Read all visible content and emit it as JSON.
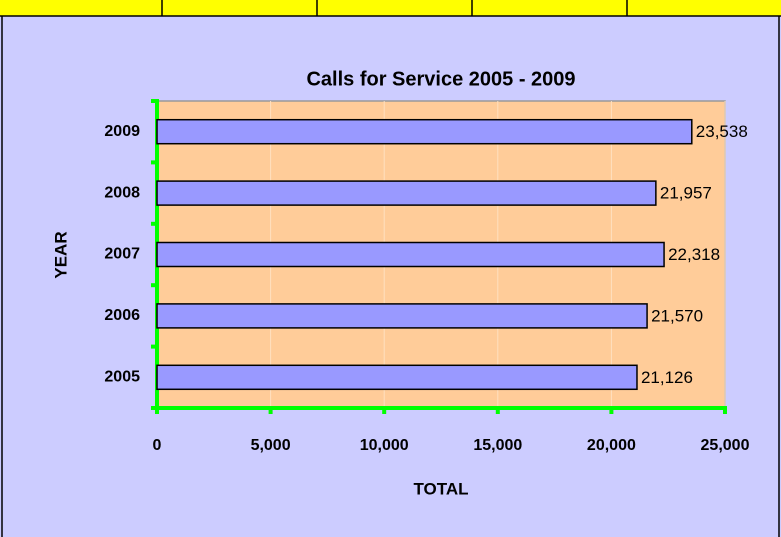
{
  "chart_data": {
    "type": "bar",
    "orientation": "horizontal",
    "title": "Calls for Service 2005 - 2009",
    "x_label": "TOTAL",
    "y_label": "YEAR",
    "categories": [
      "2005",
      "2006",
      "2007",
      "2008",
      "2009"
    ],
    "values": [
      21126,
      21570,
      22318,
      21957,
      23538
    ],
    "value_labels": [
      "21,126",
      "21,570",
      "22,318",
      "21,957",
      "23,538"
    ],
    "color": "#9999ff",
    "xlim": [
      0,
      25000
    ],
    "xticks": [
      0,
      {
        "value": 5000,
        "label": "5,000"
      },
      {
        "value": 10000,
        "label": "10,000"
      },
      {
        "value": 15000,
        "label": "15,000"
      },
      {
        "value": 20000,
        "label": "20,000"
      },
      {
        "value": 25000,
        "label": "25,000"
      }
    ],
    "grid": true
  }
}
